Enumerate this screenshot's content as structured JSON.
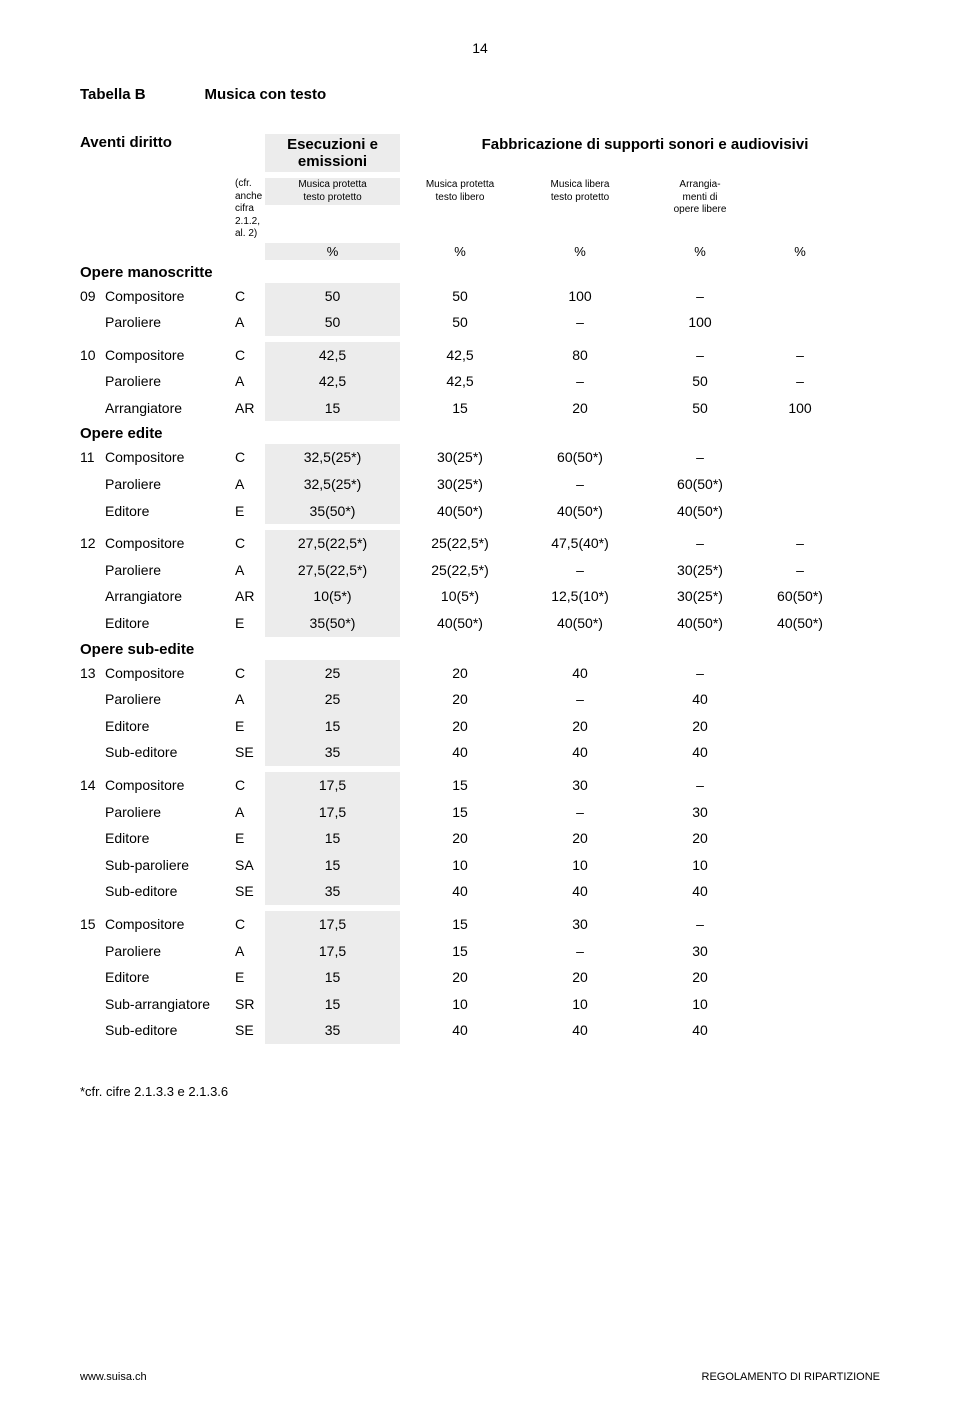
{
  "page_number": "14",
  "table_label": "Tabella B",
  "table_title": "Musica con testo",
  "header_left": "Aventi diritto",
  "header_mid_line1": "Esecuzioni e",
  "header_mid_line2": "emissioni",
  "header_right": "Fabbricazione di supporti sonori e audiovisivi",
  "cfr_line1": "(cfr. anche",
  "cfr_line2": "cifra 2.1.2, al. 2)",
  "col1_l1": "Musica protetta",
  "col1_l2": "testo protetto",
  "col2_l1": "Musica protetta",
  "col2_l2": "testo libero",
  "col3_l1": "Musica libera",
  "col3_l2": "testo protetto",
  "col4_l1": "Arrangia-",
  "col4_l2": "menti di",
  "col4_l3": "opere libere",
  "pct": "%",
  "sections": {
    "manoscritte": "Opere manoscritte",
    "edite": "Opere edite",
    "subedite": "Opere sub-edite"
  },
  "rows": [
    {
      "n": "09",
      "role": "Compositore",
      "code": "C",
      "v": [
        "50",
        "50",
        "100",
        "–",
        ""
      ]
    },
    {
      "n": "",
      "role": "Paroliere",
      "code": "A",
      "v": [
        "50",
        "50",
        "–",
        "100",
        ""
      ]
    },
    {
      "gap": true
    },
    {
      "n": "10",
      "role": "Compositore",
      "code": "C",
      "v": [
        "42,5",
        "42,5",
        "80",
        "–",
        "–"
      ]
    },
    {
      "n": "",
      "role": "Paroliere",
      "code": "A",
      "v": [
        "42,5",
        "42,5",
        "–",
        "50",
        "–"
      ]
    },
    {
      "n": "",
      "role": "Arrangiatore",
      "code": "AR",
      "v": [
        "15",
        "15",
        "20",
        "50",
        "100"
      ]
    }
  ],
  "rows_edite": [
    {
      "n": "11",
      "role": "Compositore",
      "code": "C",
      "v": [
        "32,5(25*)",
        "30(25*)",
        "60(50*)",
        "–",
        ""
      ]
    },
    {
      "n": "",
      "role": "Paroliere",
      "code": "A",
      "v": [
        "32,5(25*)",
        "30(25*)",
        "–",
        "60(50*)",
        ""
      ]
    },
    {
      "n": "",
      "role": "Editore",
      "code": "E",
      "v": [
        "35(50*)",
        "40(50*)",
        "40(50*)",
        "40(50*)",
        ""
      ]
    },
    {
      "gap": true
    },
    {
      "n": "12",
      "role": "Compositore",
      "code": "C",
      "v": [
        "27,5(22,5*)",
        "25(22,5*)",
        "47,5(40*)",
        "–",
        "–"
      ]
    },
    {
      "n": "",
      "role": "Paroliere",
      "code": "A",
      "v": [
        "27,5(22,5*)",
        "25(22,5*)",
        "–",
        "30(25*)",
        "–"
      ]
    },
    {
      "n": "",
      "role": "Arrangiatore",
      "code": "AR",
      "v": [
        "10(5*)",
        "10(5*)",
        "12,5(10*)",
        "30(25*)",
        "60(50*)"
      ]
    },
    {
      "n": "",
      "role": "Editore",
      "code": "E",
      "v": [
        "35(50*)",
        "40(50*)",
        "40(50*)",
        "40(50*)",
        "40(50*)"
      ]
    }
  ],
  "rows_subedite": [
    {
      "n": "13",
      "role": "Compositore",
      "code": "C",
      "v": [
        "25",
        "20",
        "40",
        "–",
        ""
      ]
    },
    {
      "n": "",
      "role": "Paroliere",
      "code": "A",
      "v": [
        "25",
        "20",
        "–",
        "40",
        ""
      ]
    },
    {
      "n": "",
      "role": "Editore",
      "code": "E",
      "v": [
        "15",
        "20",
        "20",
        "20",
        ""
      ]
    },
    {
      "n": "",
      "role": "Sub-editore",
      "code": "SE",
      "v": [
        "35",
        "40",
        "40",
        "40",
        ""
      ]
    },
    {
      "gap": true
    },
    {
      "n": "14",
      "role": "Compositore",
      "code": "C",
      "v": [
        "17,5",
        "15",
        "30",
        "–",
        ""
      ]
    },
    {
      "n": "",
      "role": "Paroliere",
      "code": "A",
      "v": [
        "17,5",
        "15",
        "–",
        "30",
        ""
      ]
    },
    {
      "n": "",
      "role": "Editore",
      "code": "E",
      "v": [
        "15",
        "20",
        "20",
        "20",
        ""
      ]
    },
    {
      "n": "",
      "role": "Sub-paroliere",
      "code": "SA",
      "v": [
        "15",
        "10",
        "10",
        "10",
        ""
      ]
    },
    {
      "n": "",
      "role": "Sub-editore",
      "code": "SE",
      "v": [
        "35",
        "40",
        "40",
        "40",
        ""
      ]
    },
    {
      "gap": true
    },
    {
      "n": "15",
      "role": "Compositore",
      "code": "C",
      "v": [
        "17,5",
        "15",
        "30",
        "–",
        ""
      ]
    },
    {
      "n": "",
      "role": "Paroliere",
      "code": "A",
      "v": [
        "17,5",
        "15",
        "–",
        "30",
        ""
      ]
    },
    {
      "n": "",
      "role": "Editore",
      "code": "E",
      "v": [
        "15",
        "20",
        "20",
        "20",
        ""
      ]
    },
    {
      "n": "",
      "role": "Sub-arrangiatore",
      "code": "SR",
      "v": [
        "15",
        "10",
        "10",
        "10",
        ""
      ]
    },
    {
      "n": "",
      "role": "Sub-editore",
      "code": "SE",
      "v": [
        "35",
        "40",
        "40",
        "40",
        ""
      ]
    }
  ],
  "footnote": "*cfr. cifre 2.1.3.3 e 2.1.3.6",
  "footer_left": "www.suisa.ch",
  "footer_right": "REGOLAMENTO DI RIPARTIZIONE"
}
